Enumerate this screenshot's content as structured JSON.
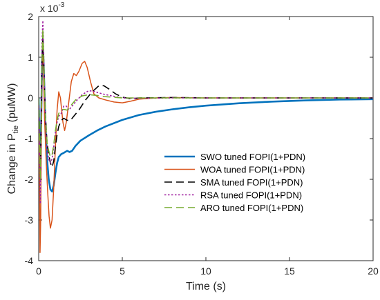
{
  "chart_data": {
    "type": "line",
    "xlabel": "Time (s)",
    "ylabel_main": "Change in P",
    "ylabel_sub": "tie",
    "ylabel_unit": " (puMW)",
    "y_exponent_label": "x 10",
    "y_exponent_power": "-3",
    "xlim": [
      0,
      20
    ],
    "ylim": [
      -4,
      2
    ],
    "xticks": [
      "0",
      "5",
      "10",
      "15",
      "20"
    ],
    "yticks": [
      "-4",
      "-3",
      "-2",
      "-1",
      "0",
      "1",
      "2"
    ],
    "grid": false,
    "legend_position": "right",
    "series": [
      {
        "name": "SWO tuned FOPI(1+PDN)",
        "color": "#0072BD",
        "dash": "solid",
        "width": 2.6,
        "points": [
          [
            0,
            0
          ],
          [
            0.05,
            -1.0
          ],
          [
            0.1,
            -2.0
          ],
          [
            0.15,
            -0.6
          ],
          [
            0.2,
            0.9
          ],
          [
            0.25,
            1.3
          ],
          [
            0.3,
            0.8
          ],
          [
            0.4,
            -0.6
          ],
          [
            0.5,
            -1.5
          ],
          [
            0.6,
            -2.0
          ],
          [
            0.7,
            -2.25
          ],
          [
            0.8,
            -2.3
          ],
          [
            0.9,
            -2.15
          ],
          [
            1.0,
            -1.85
          ],
          [
            1.1,
            -1.6
          ],
          [
            1.2,
            -1.45
          ],
          [
            1.35,
            -1.38
          ],
          [
            1.5,
            -1.35
          ],
          [
            1.7,
            -1.3
          ],
          [
            1.85,
            -1.33
          ],
          [
            2.0,
            -1.3
          ],
          [
            2.2,
            -1.18
          ],
          [
            2.5,
            -1.05
          ],
          [
            3.0,
            -0.92
          ],
          [
            3.5,
            -0.8
          ],
          [
            4.0,
            -0.7
          ],
          [
            5.0,
            -0.54
          ],
          [
            6.0,
            -0.42
          ],
          [
            7.0,
            -0.34
          ],
          [
            8.0,
            -0.28
          ],
          [
            9.0,
            -0.23
          ],
          [
            10.0,
            -0.19
          ],
          [
            12.0,
            -0.13
          ],
          [
            14.0,
            -0.09
          ],
          [
            16.0,
            -0.06
          ],
          [
            18.0,
            -0.04
          ],
          [
            20.0,
            -0.03
          ]
        ]
      },
      {
        "name": "WOA tuned FOPI(1+PDN)",
        "color": "#D95319",
        "dash": "solid",
        "width": 1.5,
        "points": [
          [
            0,
            0
          ],
          [
            0.05,
            -2.0
          ],
          [
            0.08,
            -3.8
          ],
          [
            0.12,
            -3.0
          ],
          [
            0.16,
            -0.8
          ],
          [
            0.2,
            0.6
          ],
          [
            0.24,
            1.3
          ],
          [
            0.28,
            0.9
          ],
          [
            0.35,
            -0.5
          ],
          [
            0.45,
            -1.6
          ],
          [
            0.55,
            -2.4
          ],
          [
            0.62,
            -2.9
          ],
          [
            0.7,
            -3.2
          ],
          [
            0.8,
            -3.0
          ],
          [
            0.9,
            -2.2
          ],
          [
            1.0,
            -1.2
          ],
          [
            1.1,
            -0.3
          ],
          [
            1.2,
            0.15
          ],
          [
            1.3,
            0.0
          ],
          [
            1.45,
            -0.6
          ],
          [
            1.55,
            -0.8
          ],
          [
            1.65,
            -0.6
          ],
          [
            1.8,
            -0.1
          ],
          [
            1.95,
            0.4
          ],
          [
            2.1,
            0.6
          ],
          [
            2.25,
            0.55
          ],
          [
            2.4,
            0.65
          ],
          [
            2.6,
            0.85
          ],
          [
            2.75,
            0.9
          ],
          [
            2.9,
            0.75
          ],
          [
            3.1,
            0.4
          ],
          [
            3.3,
            0.1
          ],
          [
            3.6,
            0.0
          ],
          [
            4.0,
            -0.05
          ],
          [
            4.5,
            -0.1
          ],
          [
            5.0,
            -0.12
          ],
          [
            5.5,
            -0.08
          ],
          [
            6.0,
            -0.03
          ],
          [
            7.0,
            0.0
          ],
          [
            8.0,
            0.01
          ],
          [
            10.0,
            0.0
          ],
          [
            20.0,
            0.0
          ]
        ]
      },
      {
        "name": "SMA tuned FOPI(1+PDN)",
        "color": "#000000",
        "dash": "11,6",
        "width": 1.6,
        "points": [
          [
            0,
            0
          ],
          [
            0.05,
            -0.8
          ],
          [
            0.1,
            -1.8
          ],
          [
            0.15,
            -0.6
          ],
          [
            0.2,
            0.9
          ],
          [
            0.25,
            1.5
          ],
          [
            0.3,
            0.9
          ],
          [
            0.4,
            -0.4
          ],
          [
            0.5,
            -1.1
          ],
          [
            0.6,
            -1.4
          ],
          [
            0.7,
            -1.6
          ],
          [
            0.8,
            -1.7
          ],
          [
            0.9,
            -1.55
          ],
          [
            1.0,
            -1.2
          ],
          [
            1.1,
            -0.9
          ],
          [
            1.2,
            -0.7
          ],
          [
            1.35,
            -0.55
          ],
          [
            1.5,
            -0.5
          ],
          [
            1.7,
            -0.55
          ],
          [
            1.9,
            -0.55
          ],
          [
            2.1,
            -0.45
          ],
          [
            2.4,
            -0.3
          ],
          [
            2.8,
            -0.05
          ],
          [
            3.2,
            0.15
          ],
          [
            3.6,
            0.3
          ],
          [
            3.9,
            0.3
          ],
          [
            4.2,
            0.22
          ],
          [
            4.6,
            0.1
          ],
          [
            5.0,
            0.02
          ],
          [
            5.5,
            -0.02
          ],
          [
            6.0,
            0.0
          ],
          [
            8.0,
            0.01
          ],
          [
            10.0,
            0.0
          ],
          [
            20.0,
            0.0
          ]
        ]
      },
      {
        "name": "RSA tuned FOPI(1+PDN)",
        "color": "#A020A0",
        "dash": "2.5,2.5",
        "width": 1.6,
        "points": [
          [
            0,
            0
          ],
          [
            0.05,
            -1.2
          ],
          [
            0.1,
            -2.6
          ],
          [
            0.15,
            -0.4
          ],
          [
            0.2,
            1.4
          ],
          [
            0.25,
            1.9
          ],
          [
            0.3,
            1.1
          ],
          [
            0.4,
            -0.6
          ],
          [
            0.5,
            -1.3
          ],
          [
            0.6,
            -1.5
          ],
          [
            0.7,
            -1.6
          ],
          [
            0.8,
            -1.5
          ],
          [
            0.9,
            -1.2
          ],
          [
            1.0,
            -0.85
          ],
          [
            1.1,
            -0.6
          ],
          [
            1.2,
            -0.45
          ],
          [
            1.35,
            -0.38
          ],
          [
            1.5,
            -0.2
          ],
          [
            1.65,
            -0.2
          ],
          [
            1.8,
            -0.3
          ],
          [
            2.0,
            -0.2
          ],
          [
            2.3,
            -0.05
          ],
          [
            2.6,
            0.08
          ],
          [
            3.0,
            0.18
          ],
          [
            3.4,
            0.15
          ],
          [
            3.8,
            0.1
          ],
          [
            4.5,
            0.04
          ],
          [
            5.0,
            0.0
          ],
          [
            6.0,
            -0.01
          ],
          [
            8.0,
            0.0
          ],
          [
            20.0,
            0.0
          ]
        ]
      },
      {
        "name": "ARO tuned FOPI(1+PDN)",
        "color": "#77AC30",
        "dash": "11,6",
        "width": 1.6,
        "points": [
          [
            0,
            0
          ],
          [
            0.05,
            -1.0
          ],
          [
            0.1,
            -2.0
          ],
          [
            0.15,
            -0.5
          ],
          [
            0.2,
            1.0
          ],
          [
            0.25,
            1.7
          ],
          [
            0.3,
            1.0
          ],
          [
            0.4,
            -0.5
          ],
          [
            0.5,
            -1.1
          ],
          [
            0.6,
            -1.3
          ],
          [
            0.7,
            -1.45
          ],
          [
            0.8,
            -1.4
          ],
          [
            0.9,
            -1.15
          ],
          [
            1.0,
            -0.8
          ],
          [
            1.1,
            -0.55
          ],
          [
            1.2,
            -0.38
          ],
          [
            1.35,
            -0.3
          ],
          [
            1.5,
            -0.28
          ],
          [
            1.7,
            -0.3
          ],
          [
            1.9,
            -0.2
          ],
          [
            2.2,
            -0.05
          ],
          [
            2.6,
            0.05
          ],
          [
            3.0,
            0.08
          ],
          [
            3.5,
            0.06
          ],
          [
            4.0,
            0.03
          ],
          [
            5.0,
            0.0
          ],
          [
            6.0,
            0.0
          ],
          [
            20.0,
            0.0
          ]
        ]
      }
    ]
  }
}
